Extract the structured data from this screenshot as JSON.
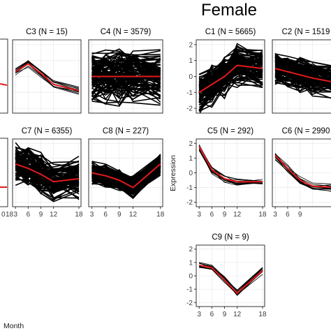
{
  "figure": {
    "group_title": "Female",
    "ylabel": "Expression",
    "xlabel_fragment": "Month"
  },
  "colors": {
    "member_lines": "#000000",
    "mean_line": "#e41a1c",
    "frame": "#333333",
    "grid": "#ebebeb"
  },
  "chart_data": [
    {
      "type": "line",
      "title": "C3 (N = 15)",
      "x": [
        3,
        6,
        9,
        12,
        18
      ],
      "mean": [
        0.3,
        0.8,
        0.2,
        -0.5,
        -0.9
      ],
      "spread": 0.25,
      "band": "narrow"
    },
    {
      "type": "line",
      "title": "C4 (N = 3579)",
      "x": [
        3,
        6,
        9,
        12,
        18
      ],
      "mean": [
        0,
        0,
        0,
        0,
        0
      ],
      "spread": 1.3,
      "band": "dense"
    },
    {
      "type": "line",
      "title": "C1 (N = 5665)",
      "x": [
        3,
        6,
        9,
        12,
        18
      ],
      "mean": [
        -1.0,
        -0.5,
        0.0,
        0.7,
        0.5
      ],
      "spread": 1.0,
      "band": "dense",
      "yticks": [
        "2",
        "1",
        "0",
        "-1",
        "-2"
      ],
      "ylim": [
        -2.3,
        2.3
      ]
    },
    {
      "type": "line",
      "title": "C2 (N = 1519",
      "x": [
        3,
        6,
        9,
        12,
        18
      ],
      "mean": [
        0.5,
        0.3,
        0.1,
        -0.1,
        -0.4
      ],
      "spread": 0.8,
      "band": "dense"
    },
    {
      "type": "line",
      "title": "C7 (N = 6355)",
      "x": [
        3,
        6,
        9,
        12,
        18
      ],
      "mean": [
        0.6,
        0.3,
        -0.1,
        -0.6,
        -0.4
      ],
      "spread": 1.1,
      "band": "dense"
    },
    {
      "type": "line",
      "title": "C8 (N = 227)",
      "x": [
        3,
        6,
        9,
        12,
        18
      ],
      "mean": [
        0.0,
        -0.2,
        -0.5,
        -1.0,
        0.6
      ],
      "spread": 0.6,
      "band": "dense",
      "xticks": [
        "3",
        "6",
        "9",
        "12",
        "18"
      ]
    },
    {
      "type": "line",
      "title": "C5 (N = 292)",
      "x": [
        3,
        6,
        9,
        12,
        18
      ],
      "mean": [
        1.8,
        0.2,
        -0.4,
        -0.6,
        -0.6
      ],
      "spread": 0.3,
      "band": "narrow",
      "yticks": [
        "2",
        "1",
        "0",
        "-1",
        "-2"
      ],
      "ylim": [
        -2.3,
        2.3
      ]
    },
    {
      "type": "line",
      "title": "C6 (N = 2990",
      "x": [
        3,
        6,
        9,
        12,
        18
      ],
      "mean": [
        1.2,
        0.3,
        -0.5,
        -0.9,
        -1.0
      ],
      "spread": 0.3,
      "band": "narrow"
    },
    {
      "type": "line",
      "title": "C9 (N = 9)",
      "x": [
        3,
        6,
        9,
        12,
        18
      ],
      "mean": [
        0.8,
        0.6,
        -0.3,
        -1.3,
        0.4
      ],
      "spread": 0.35,
      "band": "narrow",
      "yticks": [
        "2",
        "1",
        "0",
        "-1",
        "-2"
      ],
      "ylim": [
        -2.3,
        2.3
      ],
      "xticks": [
        "3",
        "6",
        "9",
        "12",
        "18"
      ]
    }
  ]
}
